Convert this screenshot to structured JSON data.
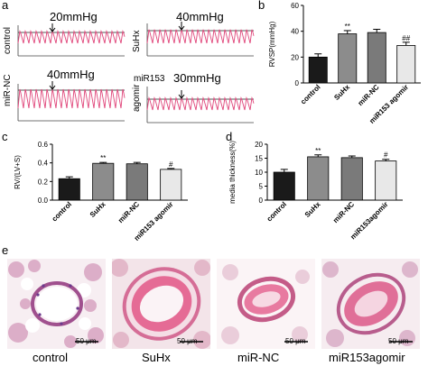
{
  "panel_letters": {
    "a": "a",
    "b": "b",
    "c": "c",
    "d": "d",
    "e": "e"
  },
  "traces": [
    {
      "group": "control",
      "pressure": "20mmHg"
    },
    {
      "group": "SuHx",
      "pressure": "40mmHg"
    },
    {
      "group": "miR-NC",
      "pressure": "40mmHg"
    },
    {
      "group": "miR153 agomir",
      "group_lines": [
        "agomir",
        "miR153"
      ],
      "pressure": "30mmHg"
    }
  ],
  "colors": {
    "bar_control": "#1a1a1a",
    "bar_suhx": "#8c8c8c",
    "bar_mirnc": "#7a7a7a",
    "bar_agomir": "#e8e8e8",
    "trace": "#e0457a",
    "he_pink": "#e98aa8",
    "he_purple": "#8a5aa8"
  },
  "chart_data": [
    {
      "panel": "b",
      "type": "bar",
      "ylabel": "RVSP(mmHg)",
      "ylim": [
        0,
        60
      ],
      "yticks": [
        "0",
        "20",
        "40",
        "60"
      ],
      "categories": [
        "control",
        "SuHx",
        "miR-NC",
        "miR153 agomir"
      ],
      "values": [
        20,
        38,
        39,
        29
      ],
      "errors": [
        2.5,
        2.5,
        2.5,
        2.5
      ],
      "annotations": [
        "",
        "**",
        "",
        "##"
      ]
    },
    {
      "panel": "c",
      "type": "bar",
      "ylabel": "RV/(LV+S)",
      "ylim": [
        0,
        0.6
      ],
      "yticks": [
        "0.0",
        "0.2",
        "0.4",
        "0.6"
      ],
      "categories": [
        "control",
        "SuHx",
        "miR-NC",
        "miR153 agomir"
      ],
      "values": [
        0.23,
        0.395,
        0.39,
        0.33
      ],
      "errors": [
        0.02,
        0.01,
        0.015,
        0.01
      ],
      "annotations": [
        "",
        "**",
        "",
        "#"
      ]
    },
    {
      "panel": "d",
      "type": "bar",
      "ylabel": "media thickness(%)",
      "ylim": [
        0,
        20
      ],
      "yticks": [
        "0",
        "5",
        "10",
        "15",
        "20"
      ],
      "categories": [
        "control",
        "SuHx",
        "miR-NC",
        "miR153agomir"
      ],
      "values": [
        10,
        15.5,
        15.2,
        14
      ],
      "errors": [
        1.0,
        0.7,
        0.6,
        0.6
      ],
      "annotations": [
        "",
        "**",
        "",
        "#"
      ]
    }
  ],
  "histology": [
    {
      "label": "control",
      "scale": "50 μm"
    },
    {
      "label": "SuHx",
      "scale": "50 μm"
    },
    {
      "label": "miR-NC",
      "scale": "50 μm"
    },
    {
      "label": "miR153agomir",
      "scale": "50 μm"
    }
  ]
}
